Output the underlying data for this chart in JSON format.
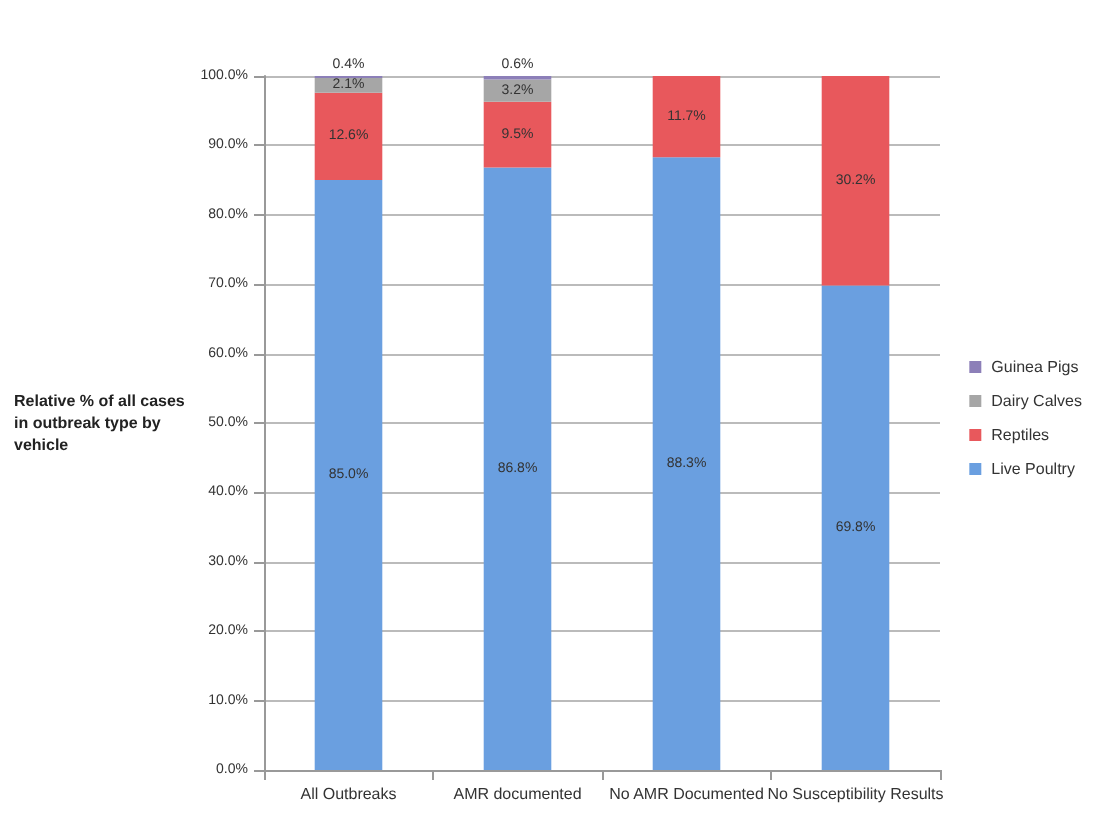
{
  "chart_data": {
    "type": "bar",
    "stacked": true,
    "ylabel": "Relative % of all cases in outbreak type by vehicle",
    "categories": [
      "All Outbreaks",
      "AMR documented",
      "No AMR Documented",
      "No Susceptibility Results"
    ],
    "series": [
      {
        "name": "Live Poultry",
        "color": "#6a9fe0",
        "values": [
          85.0,
          86.8,
          88.3,
          69.8
        ],
        "value_labels": [
          "85.0%",
          "86.8%",
          "88.3%",
          "69.8%"
        ]
      },
      {
        "name": "Reptiles",
        "color": "#e8585c",
        "values": [
          12.6,
          9.5,
          11.7,
          30.2
        ],
        "value_labels": [
          "12.6%",
          "9.5%",
          "11.7%",
          "30.2%"
        ]
      },
      {
        "name": "Dairy Calves",
        "color": "#a6a6a6",
        "values": [
          2.1,
          3.2,
          null,
          null
        ],
        "value_labels": [
          "2.1%",
          "3.2%",
          null,
          null
        ]
      },
      {
        "name": "Guinea Pigs",
        "color": "#8c7fb8",
        "values": [
          0.4,
          0.6,
          null,
          null
        ],
        "value_labels": [
          "0.4%",
          "0.6%",
          null,
          null
        ]
      }
    ],
    "ylim": [
      0,
      100
    ],
    "yticks": [
      {
        "value": 0,
        "label": "0.0%"
      },
      {
        "value": 10,
        "label": "10.0%"
      },
      {
        "value": 20,
        "label": "20.0%"
      },
      {
        "value": 30,
        "label": "30.0%"
      },
      {
        "value": 40,
        "label": "40.0%"
      },
      {
        "value": 50,
        "label": "50.0%"
      },
      {
        "value": 60,
        "label": "60.0%"
      },
      {
        "value": 70,
        "label": "70.0%"
      },
      {
        "value": 80,
        "label": "80.0%"
      },
      {
        "value": 90,
        "label": "90.0%"
      },
      {
        "value": 100,
        "label": "100.0%"
      }
    ],
    "grid": "y",
    "legend": "right"
  }
}
